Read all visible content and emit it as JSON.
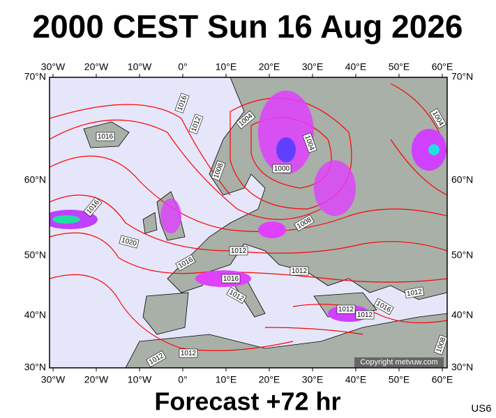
{
  "title": "2000 CEST Sun 16 Aug 2026",
  "footer": "Forecast +72 hr",
  "code": "US6",
  "copyright": "Copyright metvuw.com",
  "lon_labels": [
    "30°W",
    "20°W",
    "10°W",
    "0°",
    "10°E",
    "20°E",
    "30°E",
    "40°E",
    "50°E",
    "60°E"
  ],
  "lat_labels": [
    "70°N",
    "60°N",
    "50°N",
    "40°N",
    "30°N"
  ],
  "isobar_labels": [
    "1016",
    "1012",
    "1016",
    "1004",
    "1004",
    "1008",
    "1000",
    "1016",
    "1008",
    "1020",
    "1012",
    "1016",
    "1016",
    "1012",
    "1012",
    "1012",
    "1016",
    "1012",
    "1012",
    "1012",
    "1012",
    "1004",
    "1008"
  ]
}
